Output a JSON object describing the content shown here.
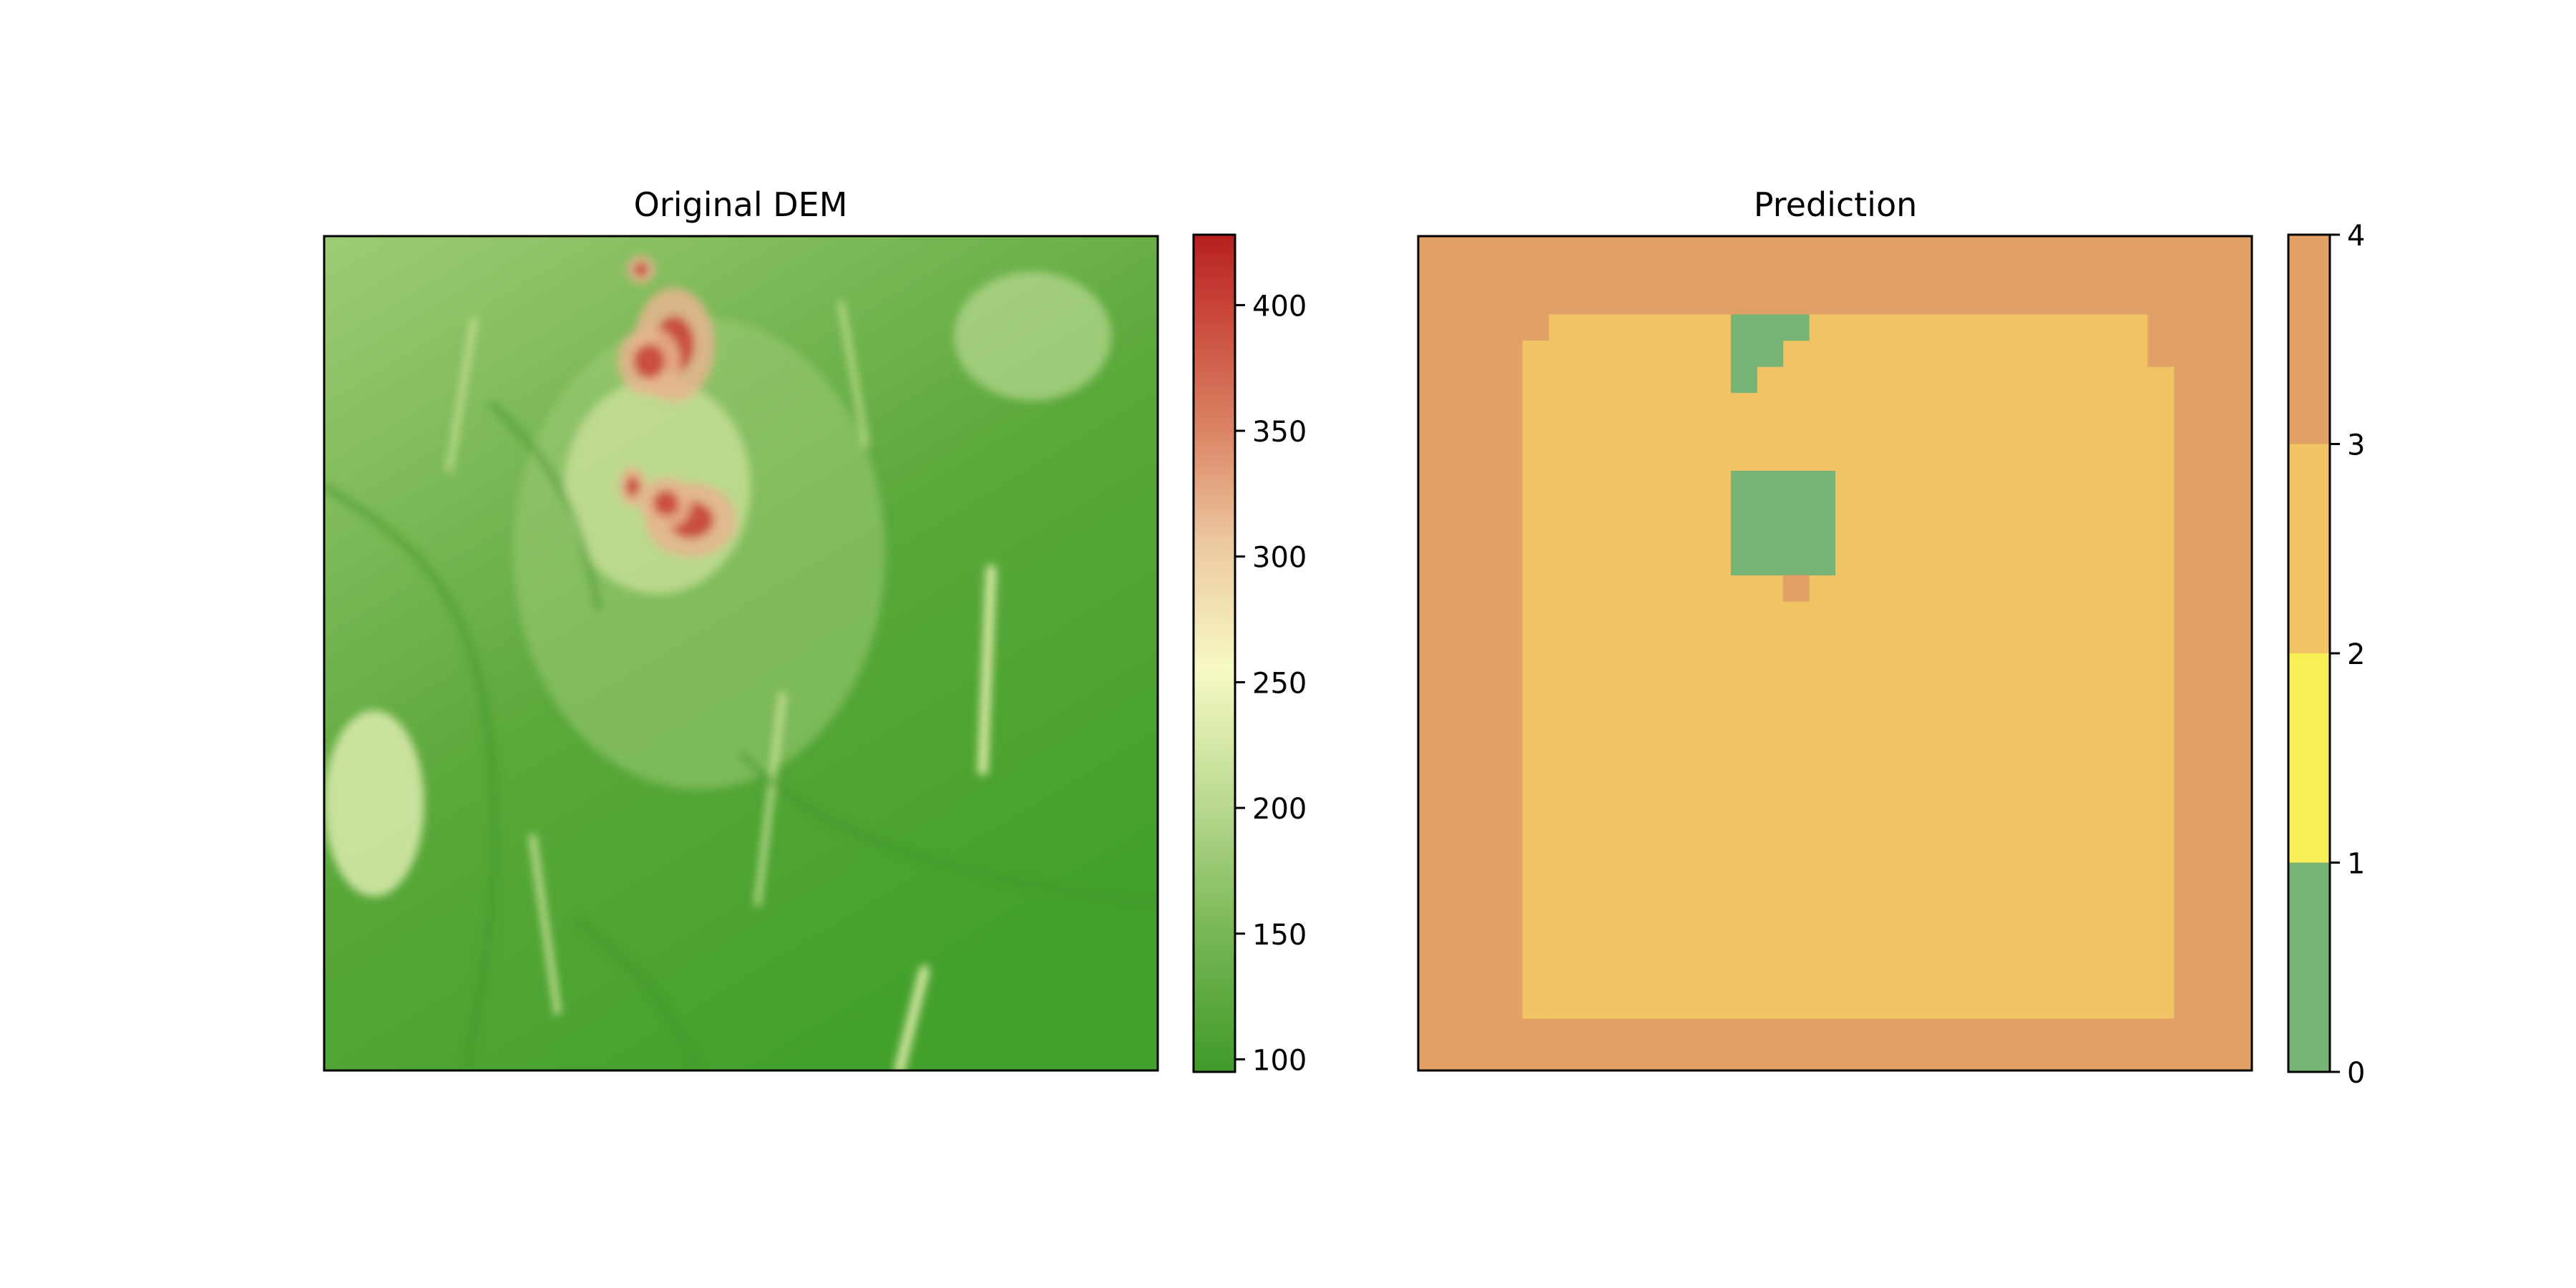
{
  "chart_data": [
    {
      "type": "heatmap",
      "title": "Original DEM",
      "xlabel": "",
      "ylabel": "",
      "axes_ticks": "hidden",
      "colormap": {
        "stops": [
          {
            "value": 95,
            "color": "#3f9a2a"
          },
          {
            "value": 150,
            "color": "#77b654"
          },
          {
            "value": 200,
            "color": "#b7d88e"
          },
          {
            "value": 255,
            "color": "#f7f9c4"
          },
          {
            "value": 305,
            "color": "#ecc9a0"
          },
          {
            "value": 350,
            "color": "#db8465"
          },
          {
            "value": 400,
            "color": "#c84338"
          },
          {
            "value": 428,
            "color": "#b51f1f"
          }
        ]
      },
      "colorbar": {
        "range": [
          95,
          428
        ],
        "ticks": [
          100,
          150,
          200,
          250,
          300,
          350,
          400
        ],
        "tick_labels": [
          "100",
          "150",
          "200",
          "250",
          "300",
          "350",
          "400"
        ]
      },
      "features": {
        "base_color": "#5aa83a",
        "peak_color": "#c84a3c",
        "ridge_color": "#e6efb0",
        "mid_color": "#9fcb76"
      }
    },
    {
      "type": "heatmap",
      "title": "Prediction",
      "xlabel": "",
      "ylabel": "",
      "axes_ticks": "hidden",
      "classes": [
        {
          "value": 0,
          "color": "#76b374"
        },
        {
          "value": 1,
          "color": "#f8ef57"
        },
        {
          "value": 2,
          "color": "#f0c465"
        },
        {
          "value": 3,
          "color": "#e1a066"
        }
      ],
      "grid_size": 32,
      "background_class": 3,
      "regions": [
        {
          "class": 2,
          "rows": [
            3,
            29
          ],
          "cols": [
            5,
            28
          ]
        },
        {
          "class": 3,
          "rows": [
            3,
            3
          ],
          "cols": [
            4,
            4
          ]
        },
        {
          "class": 3,
          "rows": [
            3,
            4
          ],
          "cols": [
            28,
            28
          ]
        },
        {
          "class": 2,
          "rows": [
            4,
            29
          ],
          "cols": [
            4,
            4
          ]
        },
        {
          "class": 0,
          "rows": [
            3,
            3
          ],
          "cols": [
            12,
            14
          ]
        },
        {
          "class": 0,
          "rows": [
            4,
            4
          ],
          "cols": [
            12,
            13
          ]
        },
        {
          "class": 0,
          "rows": [
            5,
            5
          ],
          "cols": [
            12,
            12
          ]
        },
        {
          "class": 0,
          "rows": [
            9,
            12
          ],
          "cols": [
            12,
            15
          ]
        },
        {
          "class": 3,
          "rows": [
            13,
            13
          ],
          "cols": [
            14,
            14
          ]
        }
      ],
      "colorbar": {
        "range": [
          0,
          4
        ],
        "ticks": [
          0,
          1,
          2,
          3,
          4
        ],
        "tick_labels": [
          "0",
          "1",
          "2",
          "3",
          "4"
        ]
      }
    }
  ]
}
